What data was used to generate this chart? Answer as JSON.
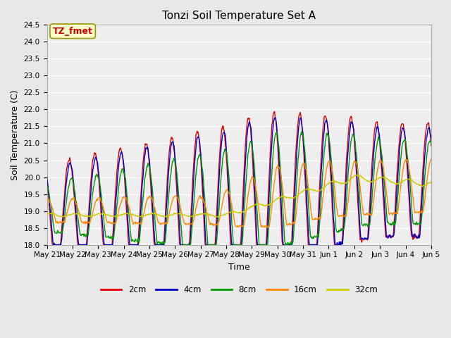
{
  "title": "Tonzi Soil Temperature Set A",
  "xlabel": "Time",
  "ylabel": "Soil Temperature (C)",
  "ylim": [
    18.0,
    24.5
  ],
  "x_tick_labels": [
    "May 21",
    "May 22",
    "May 23",
    "May 24",
    "May 25",
    "May 26",
    "May 27",
    "May 28",
    "May 29",
    "May 30",
    "May 31",
    "Jun 1",
    "Jun 2",
    "Jun 3",
    "Jun 4",
    "Jun 5"
  ],
  "annotation_text": "TZ_fmet",
  "annotation_bg": "#ffffcc",
  "annotation_fg": "#cc0000",
  "annotation_edge": "#999900",
  "figure_bg": "#e8e8e8",
  "plot_bg": "#eeeeee",
  "grid_color": "#ffffff",
  "colors": {
    "2cm": "#dd0000",
    "4cm": "#0000cc",
    "8cm": "#009900",
    "16cm": "#ff8800",
    "32cm": "#cccc00"
  },
  "title_fontsize": 11,
  "axis_label_fontsize": 9,
  "tick_fontsize": 7.5
}
